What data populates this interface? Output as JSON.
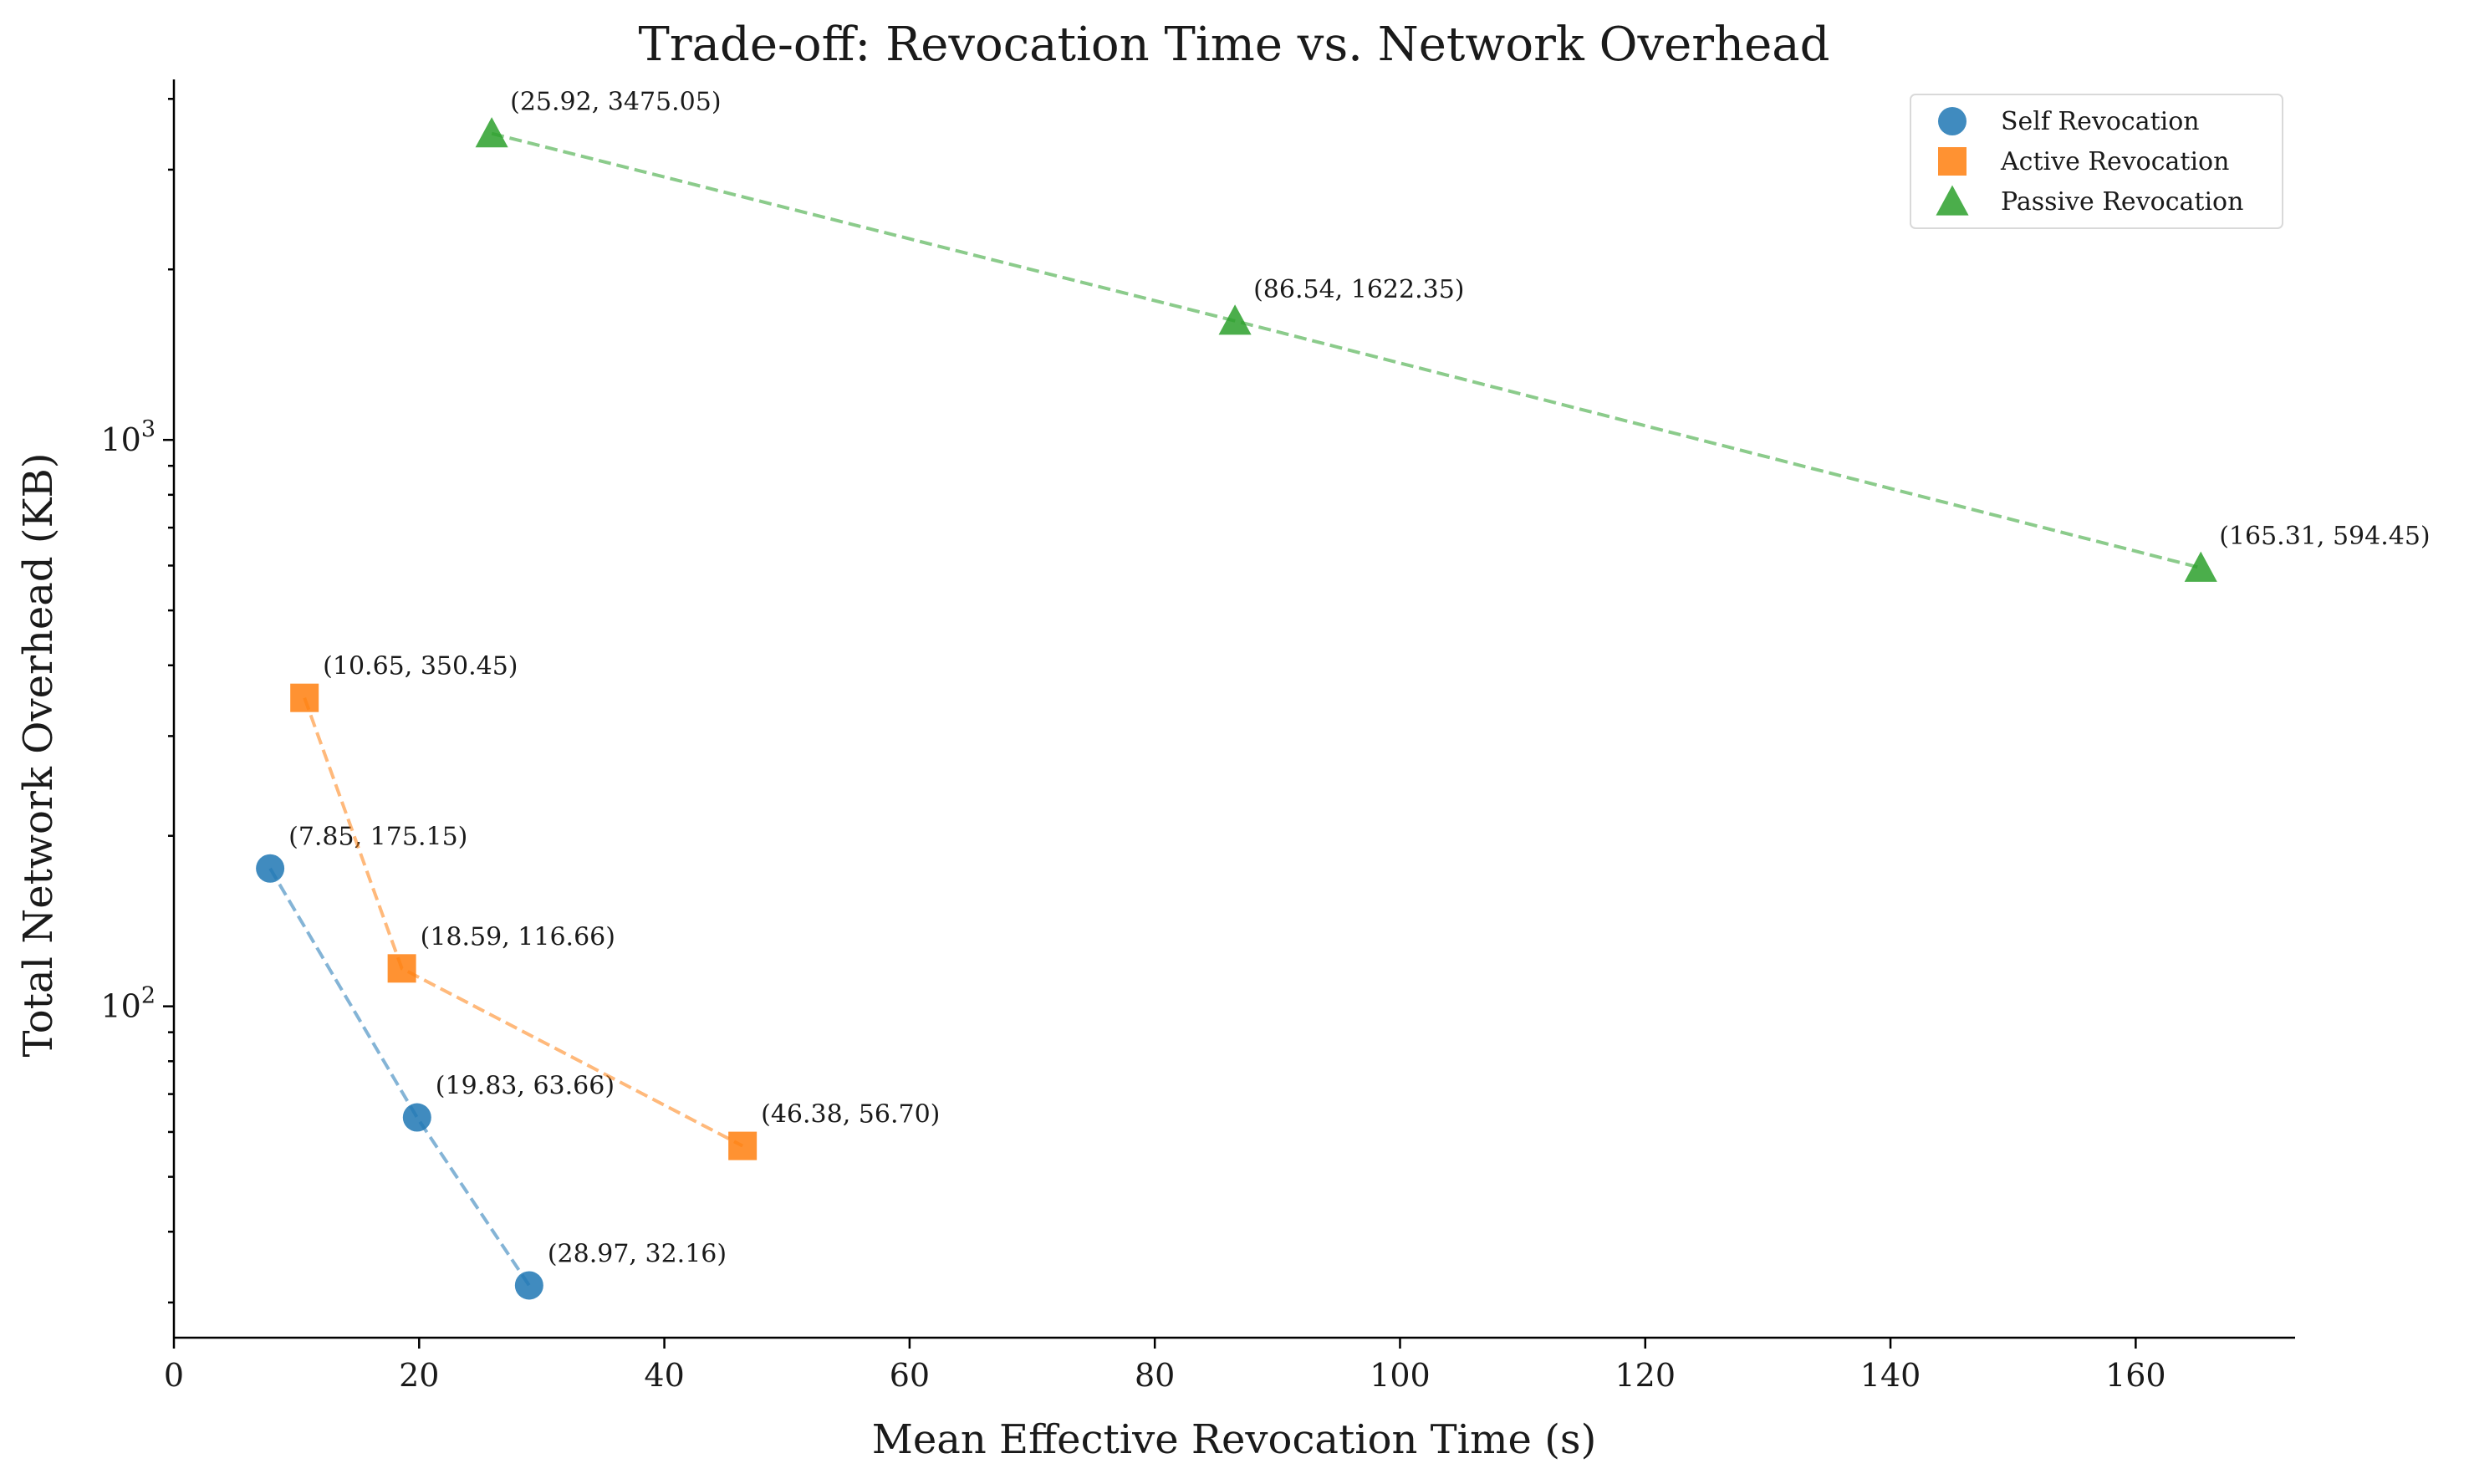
{
  "chart_data": {
    "type": "scatter",
    "title": "Trade-off: Revocation Time vs. Network Overhead",
    "xlabel": "Mean Effective Revocation Time (s)",
    "ylabel": "Total Network Overhead (KB)",
    "xlim": [
      0,
      173
    ],
    "ylim": [
      26,
      4300
    ],
    "yscale": "log",
    "grid": false,
    "legend_position": "top-right",
    "x_ticks": [
      {
        "value": 0,
        "label": "0"
      },
      {
        "value": 20,
        "label": "20"
      },
      {
        "value": 40,
        "label": "40"
      },
      {
        "value": 60,
        "label": "60"
      },
      {
        "value": 80,
        "label": "80"
      },
      {
        "value": 100,
        "label": "100"
      },
      {
        "value": 120,
        "label": "120"
      },
      {
        "value": 140,
        "label": "140"
      },
      {
        "value": 160,
        "label": "160"
      }
    ],
    "y_ticks": [
      {
        "value": 100,
        "base": "10",
        "exp": "2"
      },
      {
        "value": 1000,
        "base": "10",
        "exp": "3"
      }
    ],
    "series": [
      {
        "name": "Self Revocation",
        "marker": "circle",
        "color": "#1f77b4",
        "points": [
          {
            "x": 7.85,
            "y": 175.15,
            "label": "(7.85, 175.15)"
          },
          {
            "x": 19.83,
            "y": 63.66,
            "label": "(19.83, 63.66)"
          },
          {
            "x": 28.97,
            "y": 32.16,
            "label": "(28.97, 32.16)"
          }
        ]
      },
      {
        "name": "Active Revocation",
        "marker": "square",
        "color": "#ff7f0e",
        "points": [
          {
            "x": 10.65,
            "y": 350.45,
            "label": "(10.65, 350.45)"
          },
          {
            "x": 18.59,
            "y": 116.66,
            "label": "(18.59, 116.66)"
          },
          {
            "x": 46.38,
            "y": 56.7,
            "label": "(46.38, 56.70)"
          }
        ]
      },
      {
        "name": "Passive Revocation",
        "marker": "triangle",
        "color": "#2ca02c",
        "points": [
          {
            "x": 25.92,
            "y": 3475.05,
            "label": "(25.92, 3475.05)"
          },
          {
            "x": 86.54,
            "y": 1622.35,
            "label": "(86.54, 1622.35)"
          },
          {
            "x": 165.31,
            "y": 594.45,
            "label": "(165.31, 594.45)"
          }
        ]
      }
    ]
  }
}
